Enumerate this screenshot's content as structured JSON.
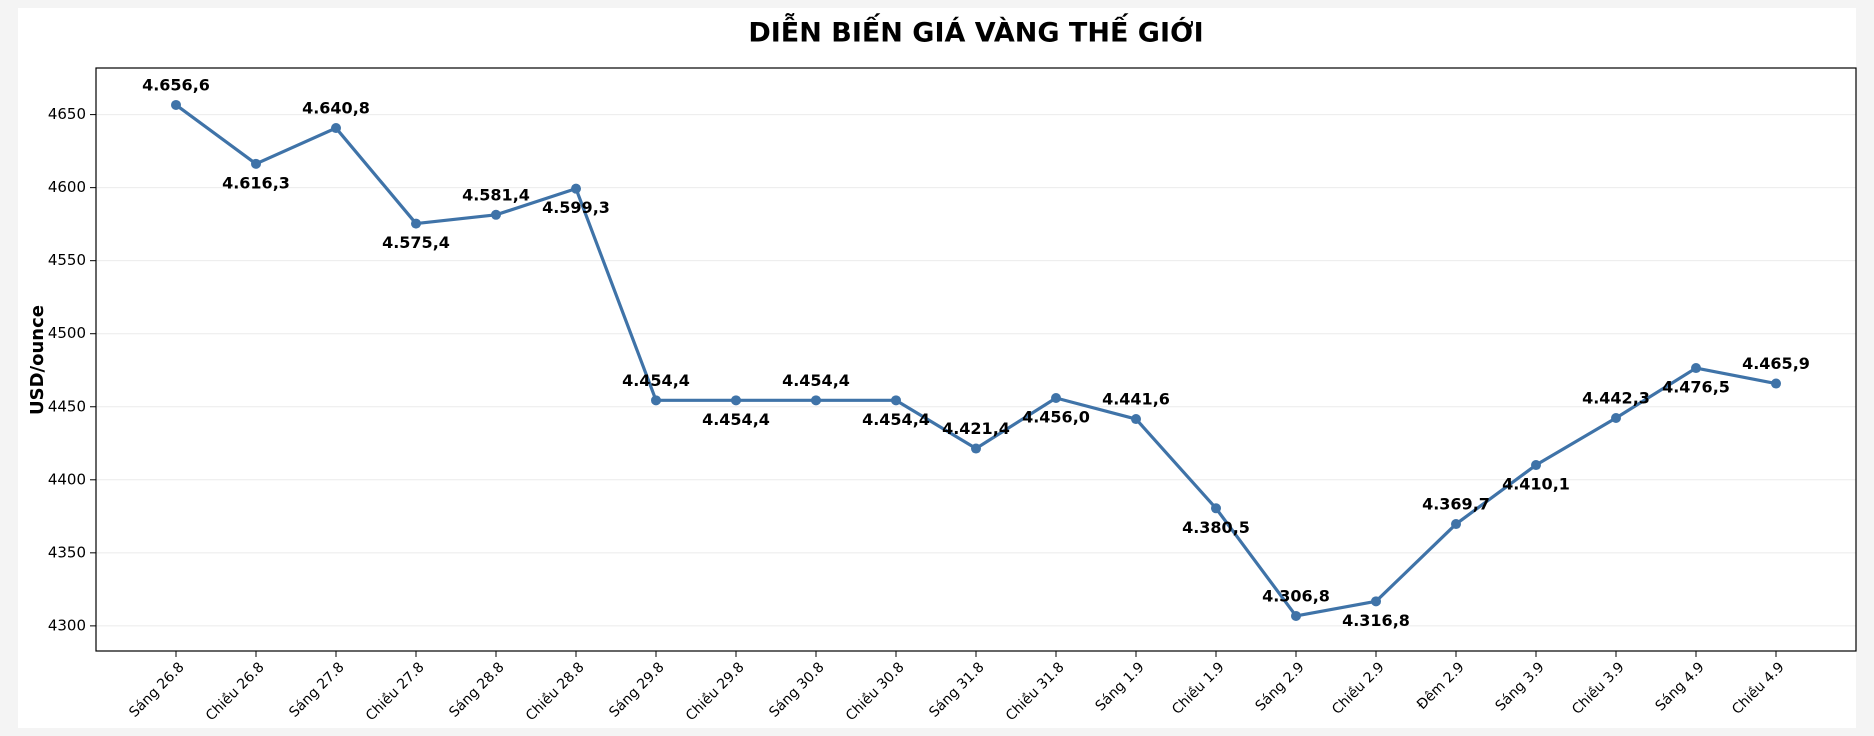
{
  "chart_data": {
    "type": "line",
    "title": "DIỄN BIẾN GIÁ VÀNG THẾ GIỚI",
    "y_label": "USD/ounce",
    "categories": [
      "Sáng 26.8",
      "Chiều 26.8",
      "Sáng 27.8",
      "Chiều 27.8",
      "Sáng 28.8",
      "Chiều 28.8",
      "Sáng 29.8",
      "Chiều 29.8",
      "Sáng 30.8",
      "Chiều 30.8",
      "Sáng 31.8",
      "Chiều 31.8",
      "Sáng 1.9",
      "Chiều 1.9",
      "Sáng 2.9",
      "Chiều 2.9",
      "Đêm 2.9",
      "Sáng 3.9",
      "Chiều 3.9",
      "Sáng 4.9",
      "Chiều 4.9"
    ],
    "series": [
      {
        "name": "USD/ounce",
        "color": "#3f73a8",
        "values": [
          4656.6,
          4616.3,
          4640.8,
          4575.4,
          4581.4,
          4599.3,
          4454.4,
          4454.4,
          4454.4,
          4454.4,
          4421.4,
          4456.0,
          4441.6,
          4380.5,
          4306.8,
          4316.8,
          4369.7,
          4410.1,
          4442.3,
          4476.5,
          4465.9
        ],
        "value_labels": [
          "4.656,6",
          "4.616,3",
          "4.640,8",
          "4.575,4",
          "4.581,4",
          "4.599,3",
          "4.454,4",
          "4.454,4",
          "4.454,4",
          "4.454,4",
          "4.421,4",
          "4.456,0",
          "4.441,6",
          "4.380,5",
          "4.306,8",
          "4.316,8",
          "4.369,7",
          "4.410,1",
          "4.442,3",
          "4.476,5",
          "4.465,9"
        ]
      }
    ],
    "ylim": [
      4282.8,
      4681.9
    ],
    "yticks": [
      4300,
      4350,
      4400,
      4450,
      4500,
      4550,
      4600,
      4650
    ],
    "grid": true
  }
}
